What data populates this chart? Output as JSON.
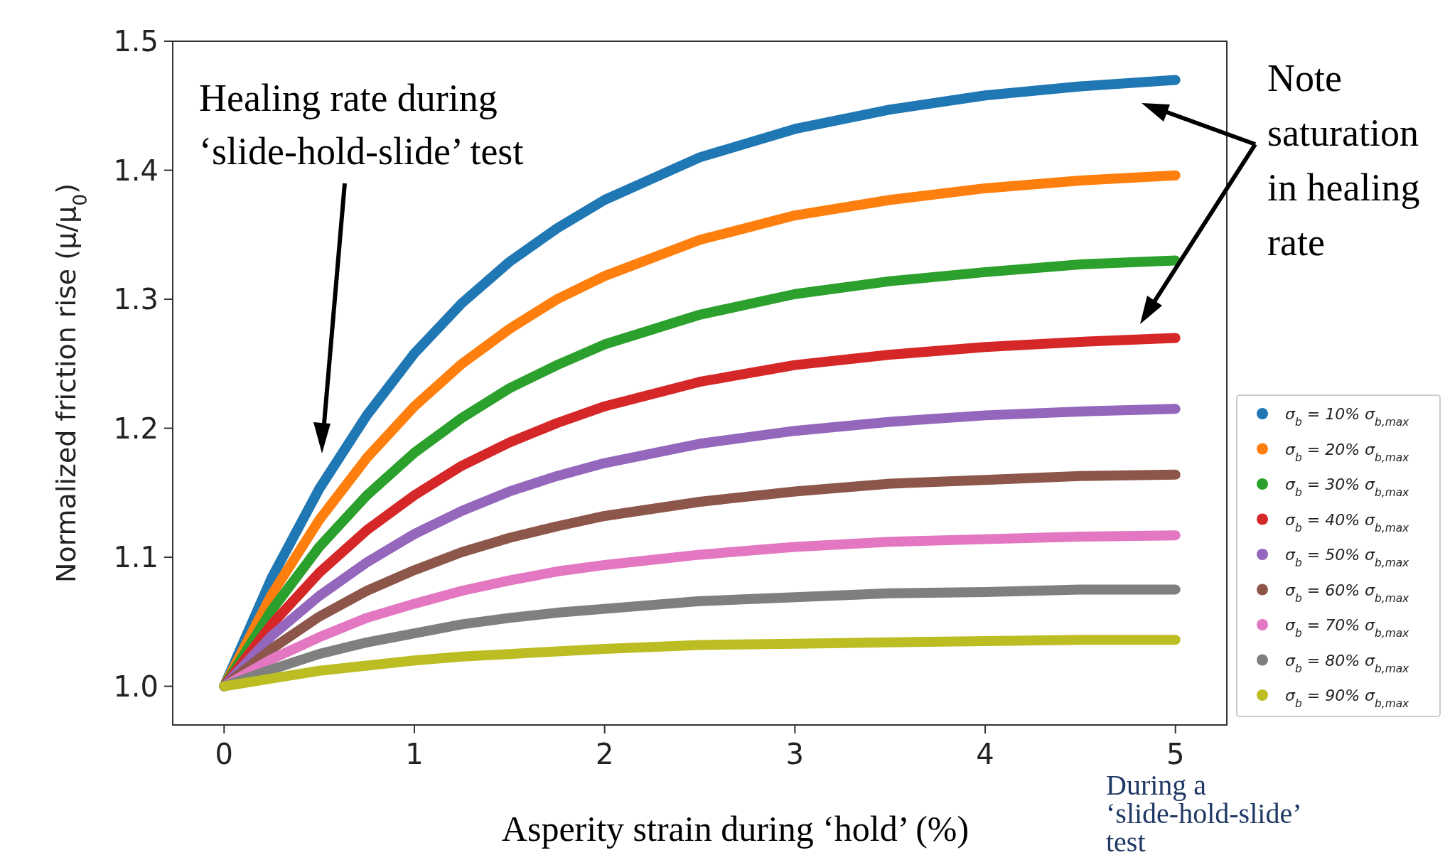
{
  "chart_data": {
    "type": "line",
    "xlabel": "Asperity strain during ‘hold’ (%)",
    "ylabel": "Normalized friction rise (μ/μ$_{0}$)",
    "x": [
      0,
      0.25,
      0.5,
      0.75,
      1,
      1.25,
      1.5,
      1.75,
      2,
      2.5,
      3,
      3.5,
      4,
      4.5,
      5
    ],
    "xlim": [
      -0.27,
      5.27
    ],
    "xticks": [
      0,
      1,
      2,
      3,
      4,
      5
    ],
    "ylim": [
      0.97,
      1.5
    ],
    "yticks": [
      {
        "value": 1,
        "label": "1.0"
      },
      1.1,
      1.2,
      1.3,
      1.4,
      1.5
    ],
    "grid": false,
    "legend": "right",
    "line_style": "solid",
    "series": [
      {
        "name": "σ$_{b}$ = 10% σ$_{b,max}$",
        "color": "#1f77b4",
        "values": [
          1.0,
          1.084,
          1.153,
          1.21,
          1.258,
          1.297,
          1.329,
          1.355,
          1.377,
          1.41,
          1.432,
          1.447,
          1.458,
          1.465,
          1.47
        ]
      },
      {
        "name": "σ$_{b}$ = 20% σ$_{b,max}$",
        "color": "#ff7f0e",
        "values": [
          1.0,
          1.071,
          1.129,
          1.177,
          1.217,
          1.25,
          1.277,
          1.3,
          1.318,
          1.346,
          1.365,
          1.377,
          1.386,
          1.392,
          1.396
        ]
      },
      {
        "name": "σ$_{b}$ = 30% σ$_{b,max}$",
        "color": "#2ca02c",
        "values": [
          1.0,
          1.059,
          1.108,
          1.148,
          1.181,
          1.208,
          1.231,
          1.249,
          1.265,
          1.288,
          1.304,
          1.314,
          1.321,
          1.327,
          1.33
        ]
      },
      {
        "name": "σ$_{b}$ = 40% σ$_{b,max}$",
        "color": "#d62728",
        "values": [
          1.0,
          1.048,
          1.088,
          1.121,
          1.148,
          1.171,
          1.189,
          1.204,
          1.217,
          1.236,
          1.249,
          1.257,
          1.263,
          1.267,
          1.27
        ]
      },
      {
        "name": "σ$_{b}$ = 50% σ$_{b,max}$",
        "color": "#9467bd",
        "values": [
          1.0,
          1.039,
          1.07,
          1.096,
          1.118,
          1.136,
          1.151,
          1.163,
          1.173,
          1.188,
          1.198,
          1.205,
          1.21,
          1.213,
          1.215
        ]
      },
      {
        "name": "σ$_{b}$ = 60% σ$_{b,max}$",
        "color": "#8c564b",
        "values": [
          1.0,
          1.029,
          1.054,
          1.074,
          1.09,
          1.104,
          1.115,
          1.124,
          1.132,
          1.143,
          1.151,
          1.157,
          1.16,
          1.163,
          1.164
        ]
      },
      {
        "name": "σ$_{b}$ = 70% σ$_{b,max}$",
        "color": "#e377c2",
        "values": [
          1.0,
          1.021,
          1.038,
          1.053,
          1.064,
          1.074,
          1.082,
          1.089,
          1.094,
          1.102,
          1.108,
          1.112,
          1.114,
          1.116,
          1.117
        ]
      },
      {
        "name": "σ$_{b}$ = 80% σ$_{b,max}$",
        "color": "#7f7f7f",
        "values": [
          1.0,
          1.013,
          1.025,
          1.034,
          1.041,
          1.048,
          1.053,
          1.057,
          1.06,
          1.066,
          1.069,
          1.072,
          1.073,
          1.075,
          1.075
        ]
      },
      {
        "name": "σ$_{b}$ = 90% σ$_{b,max}$",
        "color": "#bcbd22",
        "values": [
          1.0,
          1.006,
          1.012,
          1.016,
          1.02,
          1.023,
          1.025,
          1.027,
          1.029,
          1.032,
          1.033,
          1.034,
          1.035,
          1.036,
          1.036
        ]
      }
    ],
    "annotations": [
      "Healing rate during ‘slide-hold-slide’ test",
      "Note saturation in healing rate",
      "During a ‘slide-hold-slide’ test"
    ]
  }
}
